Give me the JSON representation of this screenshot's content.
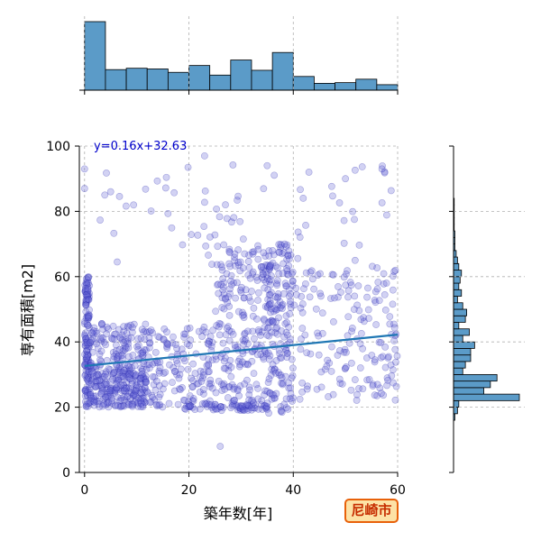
{
  "chart_data": {
    "type": "scatter",
    "xlabel": "築年数[年]",
    "ylabel": "専有面積[m2]",
    "xlim": [
      -1,
      60
    ],
    "ylim": [
      0,
      100
    ],
    "x_ticks": [
      "0",
      "20",
      "40",
      "60"
    ],
    "y_ticks": [
      "0",
      "20",
      "40",
      "60",
      "80",
      "100"
    ],
    "grid": true,
    "point_color": "#6a6ad8",
    "point_edge_color": "#1a1aa8",
    "regression": {
      "label": "y=0.16x+32.63",
      "slope": 0.16,
      "intercept": 32.63,
      "color": "#1f77b4",
      "label_color": "#0000cc"
    },
    "clusters": [
      {
        "x": [
          0,
          1
        ],
        "y": [
          20,
          60
        ],
        "n": 140
      },
      {
        "x": [
          1,
          12
        ],
        "y": [
          20,
          32
        ],
        "n": 240
      },
      {
        "x": [
          1,
          12
        ],
        "y": [
          32,
          46
        ],
        "n": 120
      },
      {
        "x": [
          12,
          25
        ],
        "y": [
          20,
          45
        ],
        "n": 150
      },
      {
        "x": [
          18,
          35
        ],
        "y": [
          19,
          21
        ],
        "n": 60
      },
      {
        "x": [
          25,
          35
        ],
        "y": [
          20,
          70
        ],
        "n": 220
      },
      {
        "x": [
          35,
          40
        ],
        "y": [
          18,
          70
        ],
        "n": 180
      },
      {
        "x": [
          40,
          60
        ],
        "y": [
          22,
          62
        ],
        "n": 160
      },
      {
        "x": [
          2,
          60
        ],
        "y": [
          60,
          95
        ],
        "n": 70
      }
    ],
    "outliers": [
      [
        0,
        93
      ],
      [
        0,
        87
      ],
      [
        5,
        86
      ],
      [
        26,
        8
      ],
      [
        27,
        82
      ],
      [
        35,
        94
      ],
      [
        57,
        93
      ],
      [
        43,
        92
      ],
      [
        23,
        97
      ],
      [
        50,
        90
      ]
    ],
    "x_marginal": {
      "type": "histogram",
      "bin_edges": [
        0,
        4,
        8,
        12,
        16,
        20,
        24,
        28,
        32,
        36,
        40,
        44,
        48,
        52,
        56,
        60
      ],
      "counts": [
        100,
        30,
        32,
        31,
        26,
        36,
        22,
        44,
        29,
        55,
        20,
        10,
        11,
        16,
        8
      ],
      "color": "#5b9bc8"
    },
    "y_marginal": {
      "type": "histogram",
      "bin_edges": [
        12,
        14,
        16,
        18,
        20,
        22,
        24,
        26,
        28,
        30,
        32,
        34,
        36,
        38,
        40,
        42,
        44,
        46,
        48,
        50,
        52,
        54,
        56,
        58,
        60,
        62,
        64,
        66,
        68,
        70,
        72,
        74,
        76,
        78,
        80,
        82,
        84,
        86,
        88,
        90,
        92,
        94,
        96,
        98,
        100
      ],
      "counts": [
        0,
        0,
        2,
        6,
        8,
        100,
        46,
        56,
        66,
        14,
        18,
        26,
        26,
        32,
        14,
        24,
        8,
        18,
        20,
        14,
        6,
        12,
        8,
        10,
        12,
        8,
        6,
        4,
        2,
        2,
        2,
        1,
        1,
        1,
        1,
        1,
        0,
        0,
        0,
        0,
        0,
        0,
        0,
        0
      ],
      "color": "#5b9bc8"
    }
  },
  "badge": {
    "label": "尼崎市",
    "text_color": "#c62c00",
    "background": "#fde2a6",
    "border": "#e8610a"
  }
}
